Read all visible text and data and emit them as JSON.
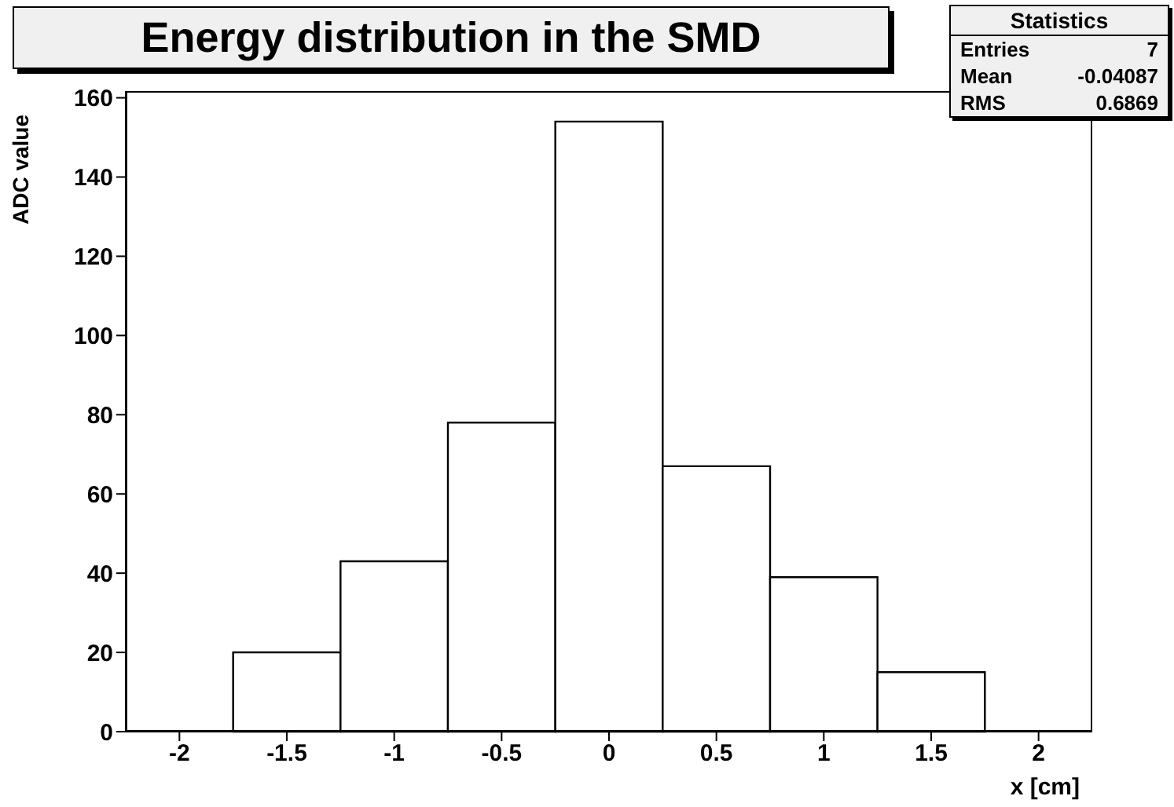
{
  "chart_data": {
    "type": "histogram",
    "title": "Energy distribution in the SMD",
    "xlabel": "x [cm]",
    "ylabel": "ADC value",
    "bins": [
      -1.75,
      -1.25,
      -0.75,
      -0.25,
      0.25,
      0.75,
      1.25,
      1.75
    ],
    "values": [
      20,
      43,
      78,
      154,
      67,
      39,
      15
    ],
    "color": "#000000",
    "xlim": [
      -2.25,
      2.25
    ],
    "xticks": [
      -2,
      -1.5,
      -1,
      -0.5,
      0,
      0.5,
      1,
      1.5,
      2
    ],
    "ylim": [
      0,
      161.7
    ],
    "yticks": [
      0,
      20,
      40,
      60,
      80,
      100,
      120,
      140,
      160
    ],
    "annotations": [
      "Statistics",
      "Entries",
      "7",
      "Mean",
      "-0.04087",
      "RMS",
      "0.6869"
    ]
  }
}
